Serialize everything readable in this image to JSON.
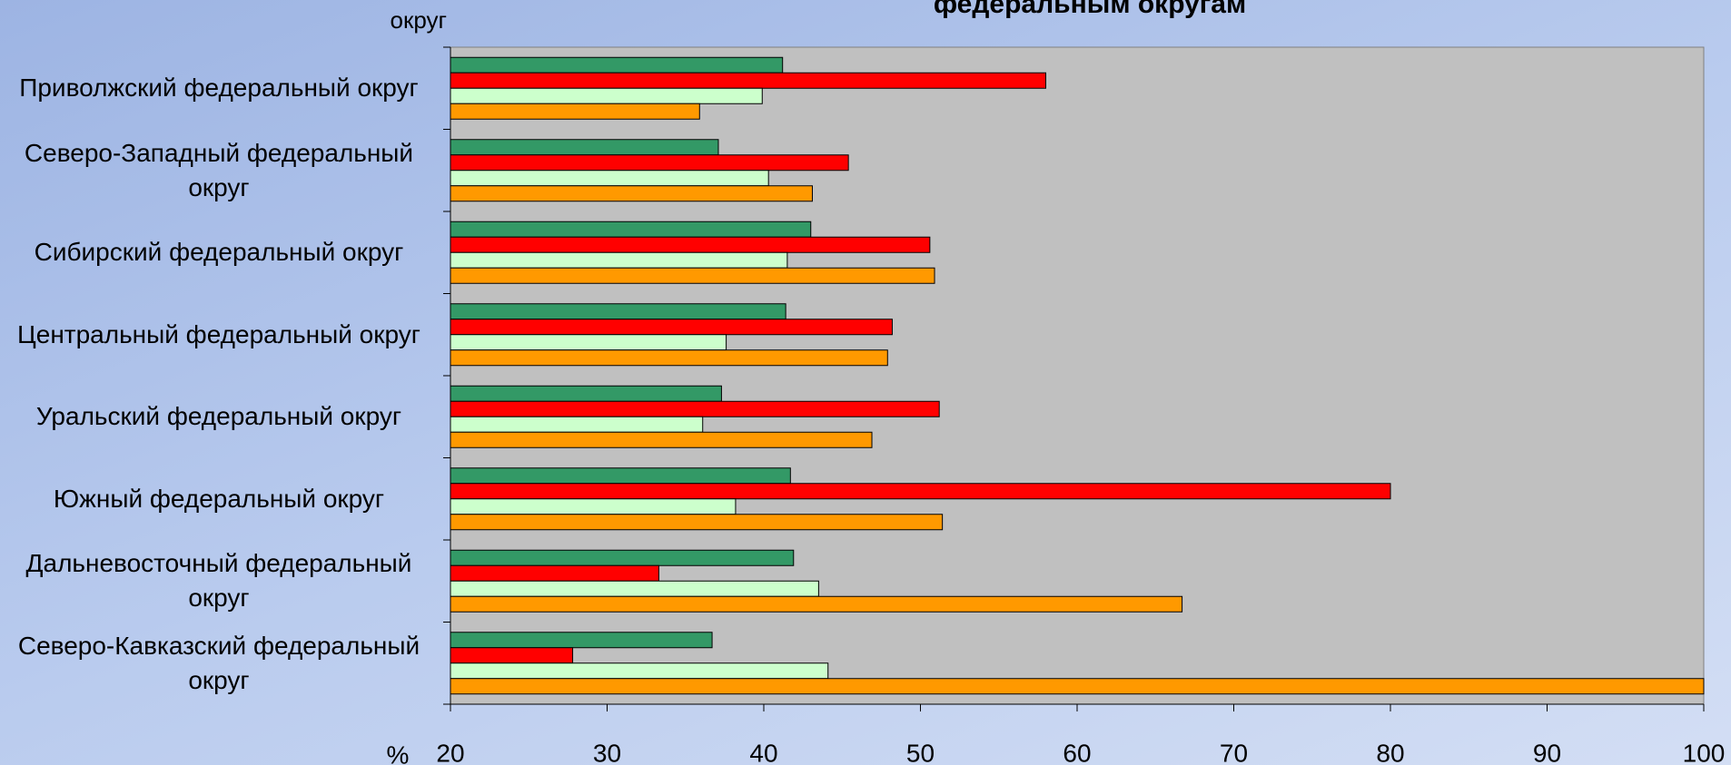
{
  "chart_data": {
    "type": "barh",
    "title": "федеральным округам",
    "y_label": "округ",
    "x_label": "%",
    "categories": [
      "Приволжский федеральный округ",
      "Северо-Западный федеральный округ",
      "Сибирский федеральный округ",
      "Центральный федеральный округ",
      "Уральский федеральный округ",
      "Южный федеральный округ",
      "Дальневосточный федеральный округ",
      "Северо-Кавказский федеральный округ"
    ],
    "series": [
      {
        "color": "#339966",
        "values": [
          41.2,
          37.1,
          43.0,
          41.4,
          37.3,
          41.7,
          41.9,
          36.7
        ]
      },
      {
        "color": "#ff0000",
        "values": [
          58.0,
          45.4,
          50.6,
          48.2,
          51.2,
          80.0,
          33.3,
          27.8
        ]
      },
      {
        "color": "#ccffcc",
        "values": [
          39.9,
          40.3,
          41.5,
          37.6,
          36.1,
          38.2,
          43.5,
          44.1
        ]
      },
      {
        "color": "#ff9900",
        "values": [
          35.9,
          43.1,
          50.9,
          47.9,
          46.9,
          51.4,
          66.7,
          100
        ]
      }
    ],
    "xlim": [
      20,
      100
    ],
    "xticks": [
      20,
      30,
      40,
      50,
      60,
      70,
      80,
      90,
      100
    ],
    "plot_background": "#c0c0c0"
  }
}
